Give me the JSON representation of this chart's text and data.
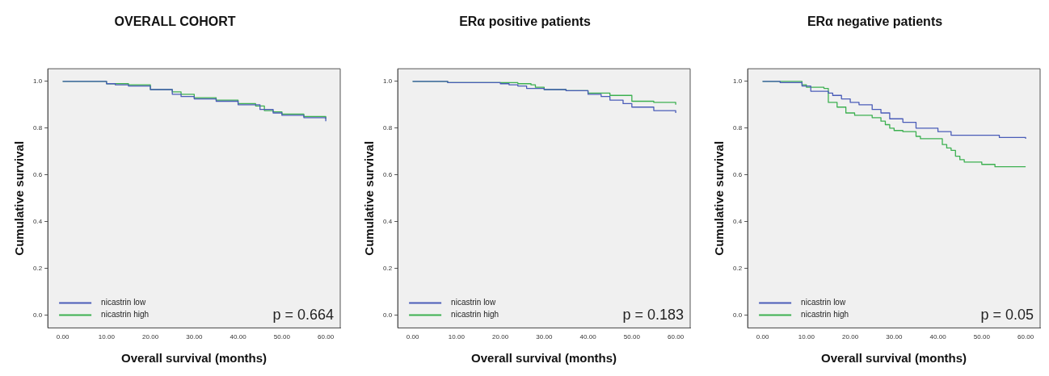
{
  "chart_data": [
    {
      "type": "step",
      "title": "OVERALL COHORT",
      "xlabel": "Overall survival (months)",
      "ylabel": "Cumulative survival",
      "xlim": [
        -3.4,
        63.3
      ],
      "ylim": [
        -0.054,
        1.054
      ],
      "xticks": [
        {
          "value": 0,
          "label": "0.00"
        },
        {
          "value": 10,
          "label": "10.00"
        },
        {
          "value": 20,
          "label": "20.00"
        },
        {
          "value": 30,
          "label": "30.00"
        },
        {
          "value": 40,
          "label": "40.00"
        },
        {
          "value": 50,
          "label": "50.00"
        },
        {
          "value": 60,
          "label": "60.00"
        }
      ],
      "yticks": [
        {
          "value": 0,
          "label": "0.0"
        },
        {
          "value": 0.2,
          "label": "0.2"
        },
        {
          "value": 0.4,
          "label": "0.4"
        },
        {
          "value": 0.6,
          "label": "0.6"
        },
        {
          "value": 0.8,
          "label": "0.8"
        },
        {
          "value": 1,
          "label": "1.0"
        }
      ],
      "grid": false,
      "legend": "bottom left",
      "annotations": [
        "p = 0.664"
      ],
      "series": [
        {
          "name": "nicastrin low",
          "color": "#4a5cb8",
          "x": [
            0,
            5,
            10,
            12,
            15,
            20,
            25,
            27,
            30,
            35,
            40,
            45,
            48,
            50,
            55,
            60
          ],
          "values": [
            1,
            1,
            0.99,
            0.985,
            0.98,
            0.965,
            0.945,
            0.935,
            0.925,
            0.915,
            0.9,
            0.88,
            0.865,
            0.855,
            0.845,
            0.83
          ]
        },
        {
          "name": "nicastrin high",
          "color": "#3cb050",
          "x": [
            0,
            5,
            10,
            15,
            20,
            25,
            27,
            30,
            35,
            40,
            44,
            46,
            48,
            50,
            55,
            60
          ],
          "values": [
            1,
            1,
            0.99,
            0.985,
            0.965,
            0.955,
            0.945,
            0.93,
            0.92,
            0.905,
            0.895,
            0.875,
            0.87,
            0.86,
            0.85,
            0.84
          ]
        }
      ]
    },
    {
      "type": "step",
      "title": "ERα positive patients",
      "xlabel": "Overall survival (months)",
      "ylabel": "Cumulative survival",
      "xlim": [
        -3.4,
        63.3
      ],
      "ylim": [
        -0.054,
        1.054
      ],
      "xticks": [
        {
          "value": 0,
          "label": "0.00"
        },
        {
          "value": 10,
          "label": "10.00"
        },
        {
          "value": 20,
          "label": "20.00"
        },
        {
          "value": 30,
          "label": "30.00"
        },
        {
          "value": 40,
          "label": "40.00"
        },
        {
          "value": 50,
          "label": "50.00"
        },
        {
          "value": 60,
          "label": "60.00"
        }
      ],
      "yticks": [
        {
          "value": 0,
          "label": "0.0"
        },
        {
          "value": 0.2,
          "label": "0.2"
        },
        {
          "value": 0.4,
          "label": "0.4"
        },
        {
          "value": 0.6,
          "label": "0.6"
        },
        {
          "value": 0.8,
          "label": "0.8"
        },
        {
          "value": 1,
          "label": "1.0"
        }
      ],
      "grid": false,
      "legend": "bottom left",
      "annotations": [
        "p = 0.183"
      ],
      "series": [
        {
          "name": "nicastrin low",
          "color": "#4a5cb8",
          "x": [
            0,
            8,
            20,
            22,
            24,
            26,
            30,
            35,
            40,
            43,
            45,
            48,
            50,
            55,
            60
          ],
          "values": [
            1,
            0.995,
            0.99,
            0.985,
            0.98,
            0.97,
            0.965,
            0.96,
            0.945,
            0.935,
            0.92,
            0.905,
            0.89,
            0.875,
            0.865
          ]
        },
        {
          "name": "nicastrin high",
          "color": "#3cb050",
          "x": [
            0,
            8,
            20,
            24,
            27,
            28,
            30,
            35,
            40,
            45,
            50,
            55,
            60
          ],
          "values": [
            1,
            0.995,
            0.995,
            0.99,
            0.985,
            0.975,
            0.965,
            0.96,
            0.95,
            0.94,
            0.915,
            0.91,
            0.9
          ]
        }
      ]
    },
    {
      "type": "step",
      "title": "ERα negative patients",
      "xlabel": "Overall survival (months)",
      "ylabel": "Cumulative survival",
      "xlim": [
        -3.4,
        63.3
      ],
      "ylim": [
        -0.054,
        1.054
      ],
      "xticks": [
        {
          "value": 0,
          "label": "0.00"
        },
        {
          "value": 10,
          "label": "10.00"
        },
        {
          "value": 20,
          "label": "20.00"
        },
        {
          "value": 30,
          "label": "30.00"
        },
        {
          "value": 40,
          "label": "40.00"
        },
        {
          "value": 50,
          "label": "50.00"
        },
        {
          "value": 60,
          "label": "60.00"
        }
      ],
      "yticks": [
        {
          "value": 0,
          "label": "0.0"
        },
        {
          "value": 0.2,
          "label": "0.2"
        },
        {
          "value": 0.4,
          "label": "0.4"
        },
        {
          "value": 0.6,
          "label": "0.6"
        },
        {
          "value": 0.8,
          "label": "0.8"
        },
        {
          "value": 1,
          "label": "1.0"
        }
      ],
      "grid": false,
      "legend": "bottom left",
      "annotations": [
        "p = 0.05"
      ],
      "series": [
        {
          "name": "nicastrin low",
          "color": "#4a5cb8",
          "x": [
            0,
            4,
            9,
            11,
            15,
            16,
            18,
            20,
            22,
            25,
            27,
            29,
            32,
            35,
            40,
            43,
            50,
            54,
            60
          ],
          "values": [
            1,
            0.995,
            0.98,
            0.958,
            0.95,
            0.94,
            0.925,
            0.91,
            0.9,
            0.88,
            0.865,
            0.84,
            0.825,
            0.8,
            0.785,
            0.77,
            0.77,
            0.76,
            0.755
          ]
        },
        {
          "name": "nicastrin high",
          "color": "#3cb050",
          "x": [
            0,
            9,
            10,
            14,
            15,
            17,
            19,
            21,
            25,
            27,
            28,
            29,
            30,
            32,
            35,
            36,
            40,
            41,
            42,
            43,
            44,
            45,
            46,
            50,
            53,
            60
          ],
          "values": [
            1,
            0.985,
            0.975,
            0.97,
            0.91,
            0.89,
            0.865,
            0.855,
            0.845,
            0.83,
            0.815,
            0.8,
            0.79,
            0.785,
            0.765,
            0.755,
            0.755,
            0.73,
            0.715,
            0.705,
            0.68,
            0.665,
            0.655,
            0.645,
            0.635,
            0.635
          ]
        }
      ]
    }
  ]
}
